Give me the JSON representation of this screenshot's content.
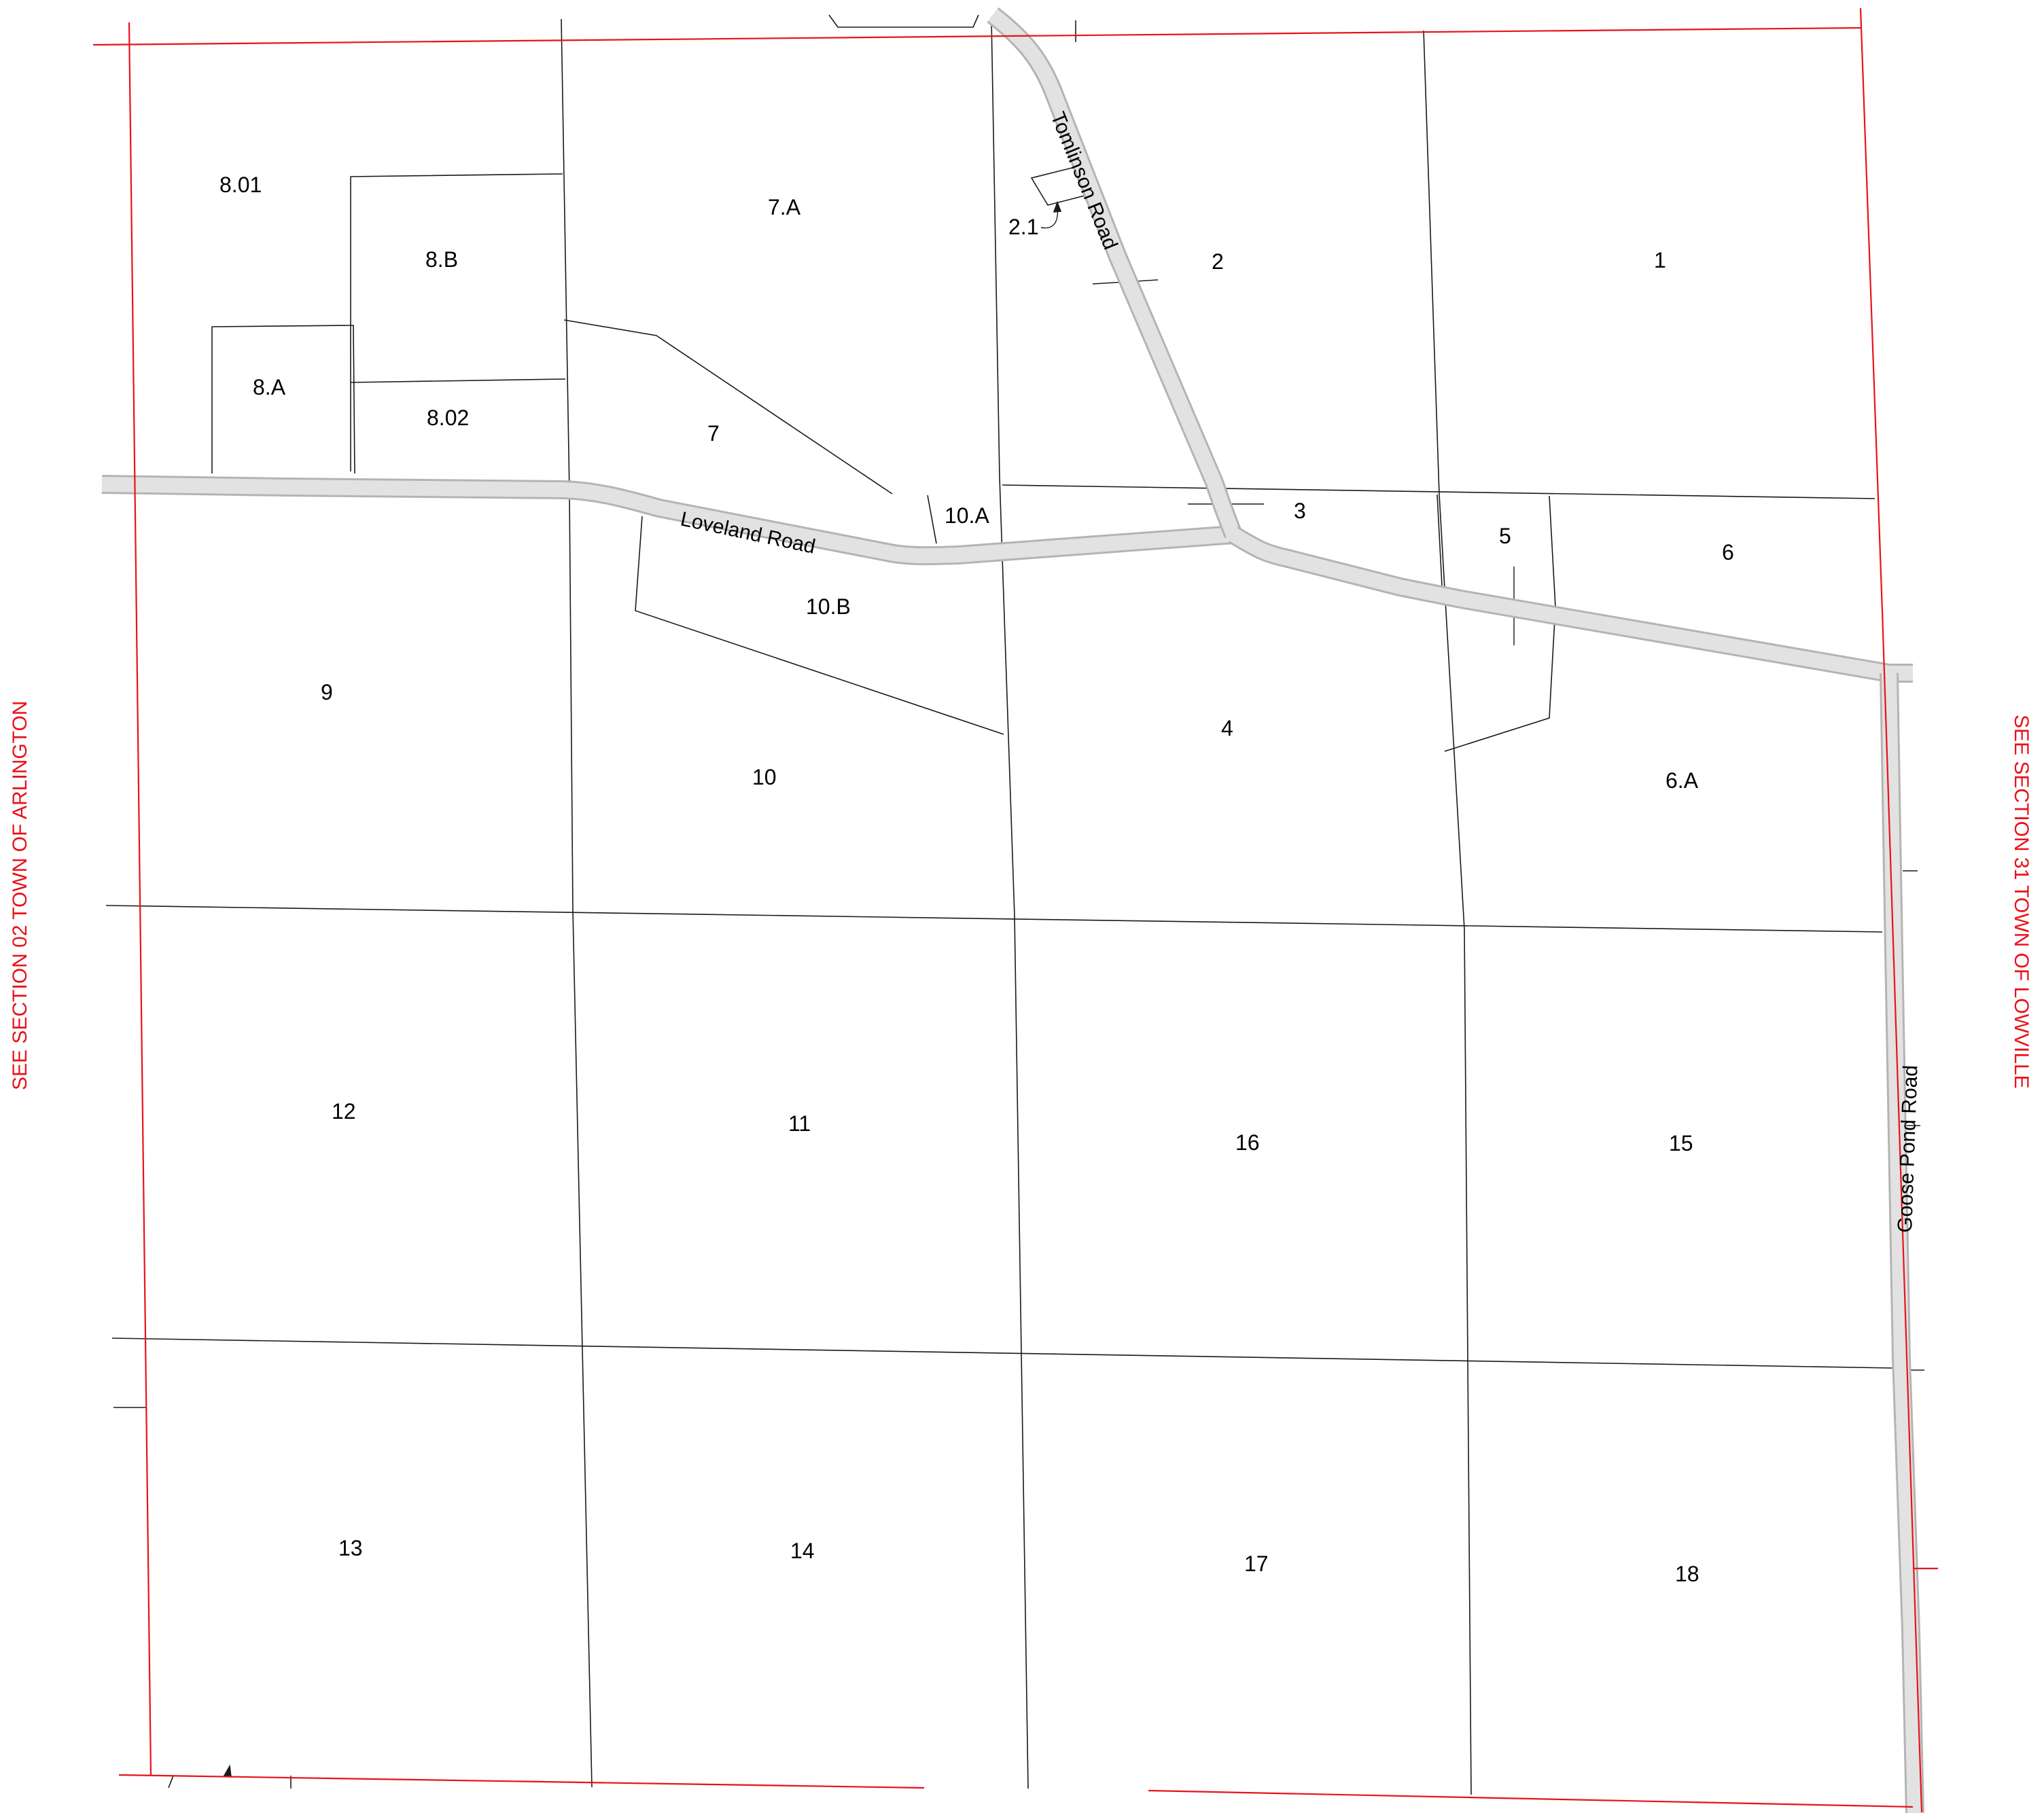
{
  "map": {
    "colors": {
      "boundary": "#e8121b",
      "road_fill": "#e2e2e2",
      "road_casing": "#b4b4b4",
      "lot_line": "#1a1a1a",
      "background": "#ffffff"
    },
    "roads": {
      "loveland": "Loveland Road",
      "tomlinson": "Tomlinson Road",
      "goose_pond": "Goose Pond Road"
    },
    "adjacent_sections": {
      "west": "SEE SECTION 02 TOWN OF ARLINGTON",
      "east": "SEE SECTION 31 TOWN OF LOWVILLE"
    },
    "lots": {
      "l801": "8.01",
      "l7a": "7.A",
      "l21": "2.1",
      "l2": "2",
      "l1": "1",
      "l8b": "8.B",
      "l8a": "8.A",
      "l802": "8.02",
      "l7": "7",
      "l10a": "10.A",
      "l3": "3",
      "l5": "5",
      "l6": "6",
      "l10b": "10.B",
      "l9": "9",
      "l4": "4",
      "l10": "10",
      "l6a": "6.A",
      "l12": "12",
      "l11": "11",
      "l16": "16",
      "l15": "15",
      "l13": "13",
      "l14": "14",
      "l17": "17",
      "l18": "18"
    }
  }
}
